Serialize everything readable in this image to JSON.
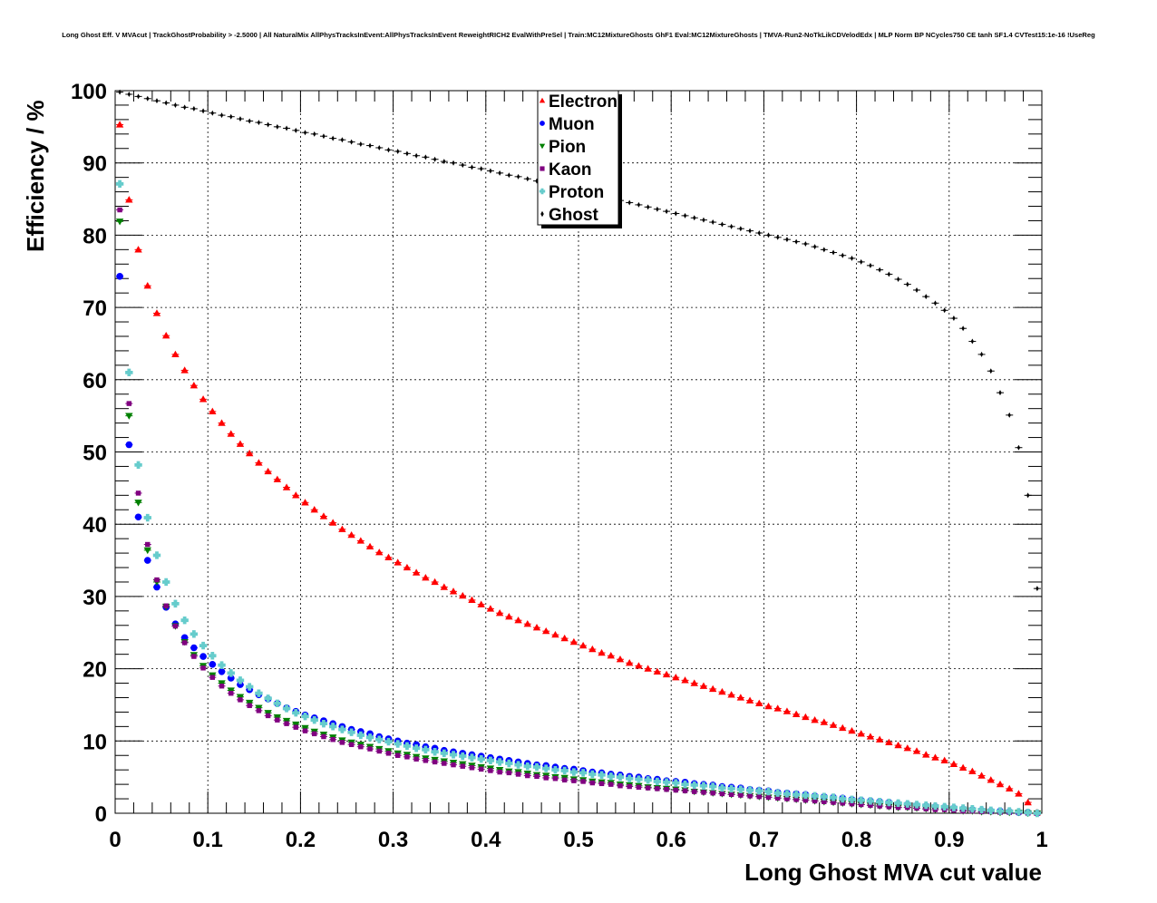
{
  "title": "Long Ghost Eff. V MVAcut | TrackGhostProbability > -2.5000 | All NaturalMix AllPhysTracksInEvent:AllPhysTracksInEvent ReweightRICH2 EvalWithPreSel | Train:MC12MixtureGhosts GhF1 Eval:MC12MixtureGhosts | TMVA-Run2-NoTkLikCDVelodEdx | MLP Norm BP NCycles750 CE tanh SF1.4 CVTest15:1e-16 !UseReg",
  "chart_data": {
    "type": "scatter",
    "title": "Long Ghost Eff. V MVAcut | TrackGhostProbability > -2.5000 | All NaturalMix AllPhysTracksInEvent:AllPhysTracksInEvent ReweightRICH2 EvalWithPreSel | Train:MC12MixtureGhosts GhF1 Eval:MC12MixtureGhosts | TMVA-Run2-NoTkLikCDVelodEdx | MLP Norm BP NCycles750 CE tanh SF1.4 CVTest15:1e-16 !UseReg",
    "xlabel": "Long Ghost MVA cut value",
    "ylabel": "Efficiency / %",
    "xlim": [
      0,
      1
    ],
    "ylim": [
      0,
      100
    ],
    "xticks": [
      "0",
      "0.1",
      "0.2",
      "0.3",
      "0.4",
      "0.5",
      "0.6",
      "0.7",
      "0.8",
      "0.9",
      "1"
    ],
    "yticks": [
      "0",
      "10",
      "20",
      "30",
      "40",
      "50",
      "60",
      "70",
      "80",
      "90",
      "100"
    ],
    "grid": true,
    "legend_position": "top-center",
    "x": [
      0.005,
      0.015,
      0.025,
      0.035,
      0.045,
      0.055,
      0.065,
      0.075,
      0.085,
      0.095,
      0.105,
      0.115,
      0.125,
      0.135,
      0.145,
      0.155,
      0.165,
      0.175,
      0.185,
      0.195,
      0.205,
      0.215,
      0.225,
      0.235,
      0.245,
      0.255,
      0.265,
      0.275,
      0.285,
      0.295,
      0.305,
      0.315,
      0.325,
      0.335,
      0.345,
      0.355,
      0.365,
      0.375,
      0.385,
      0.395,
      0.405,
      0.415,
      0.425,
      0.435,
      0.445,
      0.455,
      0.465,
      0.475,
      0.485,
      0.495,
      0.505,
      0.515,
      0.525,
      0.535,
      0.545,
      0.555,
      0.565,
      0.575,
      0.585,
      0.595,
      0.605,
      0.615,
      0.625,
      0.635,
      0.645,
      0.655,
      0.665,
      0.675,
      0.685,
      0.695,
      0.705,
      0.715,
      0.725,
      0.735,
      0.745,
      0.755,
      0.765,
      0.775,
      0.785,
      0.795,
      0.805,
      0.815,
      0.825,
      0.835,
      0.845,
      0.855,
      0.865,
      0.875,
      0.885,
      0.895,
      0.905,
      0.915,
      0.925,
      0.935,
      0.945,
      0.955,
      0.965,
      0.975,
      0.985,
      0.995
    ],
    "series": [
      {
        "name": "Electron",
        "color": "#ff0000",
        "marker": "triangle-up",
        "values": [
          95.3,
          84.9,
          78.0,
          73.0,
          69.2,
          66.1,
          63.5,
          61.3,
          59.2,
          57.3,
          55.6,
          54.0,
          52.5,
          51.1,
          49.8,
          48.5,
          47.3,
          46.2,
          45.1,
          44.0,
          43.0,
          42.0,
          41.1,
          40.2,
          39.3,
          38.5,
          37.7,
          36.9,
          36.1,
          35.4,
          34.7,
          34.0,
          33.3,
          32.6,
          32.0,
          31.3,
          30.7,
          30.1,
          29.5,
          28.9,
          28.3,
          27.7,
          27.2,
          26.7,
          26.2,
          25.7,
          25.2,
          24.7,
          24.2,
          23.7,
          23.2,
          22.7,
          22.2,
          21.8,
          21.3,
          20.8,
          20.4,
          20.0,
          19.6,
          19.2,
          18.8,
          18.4,
          18.0,
          17.6,
          17.2,
          16.8,
          16.4,
          16.0,
          15.6,
          15.2,
          14.8,
          14.5,
          14.1,
          13.7,
          13.3,
          12.9,
          12.6,
          12.2,
          11.8,
          11.4,
          11.0,
          10.6,
          10.2,
          9.8,
          9.4,
          9.0,
          8.6,
          8.1,
          7.7,
          7.3,
          6.8,
          6.3,
          5.8,
          5.2,
          4.6,
          4.0,
          3.4,
          2.7,
          1.5,
          0.1
        ]
      },
      {
        "name": "Muon",
        "color": "#0000ff",
        "marker": "circle",
        "values": [
          74.3,
          51.0,
          41.0,
          35.0,
          31.3,
          28.5,
          26.2,
          24.3,
          22.9,
          21.7,
          20.6,
          19.6,
          18.7,
          17.8,
          17.1,
          16.4,
          15.8,
          15.2,
          14.6,
          14.1,
          13.6,
          13.2,
          12.8,
          12.4,
          12.0,
          11.6,
          11.3,
          11.0,
          10.6,
          10.3,
          10.0,
          9.7,
          9.5,
          9.2,
          9.0,
          8.7,
          8.5,
          8.3,
          8.1,
          7.9,
          7.7,
          7.5,
          7.3,
          7.1,
          6.9,
          6.7,
          6.6,
          6.4,
          6.2,
          6.1,
          5.9,
          5.7,
          5.6,
          5.4,
          5.3,
          5.1,
          5.0,
          4.8,
          4.7,
          4.5,
          4.4,
          4.3,
          4.1,
          4.0,
          3.9,
          3.7,
          3.6,
          3.5,
          3.3,
          3.2,
          3.1,
          2.9,
          2.8,
          2.7,
          2.6,
          2.4,
          2.3,
          2.2,
          2.1,
          1.9,
          1.8,
          1.7,
          1.6,
          1.5,
          1.3,
          1.2,
          1.1,
          1.0,
          0.9,
          0.8,
          0.7,
          0.6,
          0.5,
          0.4,
          0.3,
          0.3,
          0.2,
          0.1,
          0.1,
          0.0
        ]
      },
      {
        "name": "Pion",
        "color": "#008000",
        "marker": "triangle-down",
        "values": [
          81.9,
          55.0,
          43.0,
          36.4,
          32.0,
          28.6,
          25.9,
          23.7,
          21.9,
          20.4,
          19.1,
          18.0,
          17.0,
          16.1,
          15.3,
          14.6,
          13.9,
          13.3,
          12.8,
          12.3,
          11.8,
          11.3,
          10.9,
          10.5,
          10.1,
          9.8,
          9.5,
          9.2,
          8.9,
          8.6,
          8.3,
          8.1,
          7.8,
          7.6,
          7.4,
          7.2,
          7.0,
          6.8,
          6.6,
          6.4,
          6.2,
          6.0,
          5.8,
          5.7,
          5.5,
          5.3,
          5.2,
          5.0,
          4.9,
          4.7,
          4.6,
          4.4,
          4.3,
          4.2,
          4.0,
          3.9,
          3.8,
          3.6,
          3.5,
          3.4,
          3.3,
          3.2,
          3.0,
          2.9,
          2.8,
          2.7,
          2.6,
          2.5,
          2.4,
          2.3,
          2.2,
          2.1,
          2.0,
          1.9,
          1.8,
          1.7,
          1.6,
          1.5,
          1.4,
          1.3,
          1.2,
          1.1,
          1.0,
          0.9,
          0.8,
          0.8,
          0.7,
          0.6,
          0.5,
          0.5,
          0.4,
          0.3,
          0.3,
          0.2,
          0.2,
          0.1,
          0.1,
          0.1,
          0.0,
          0.0
        ]
      },
      {
        "name": "Kaon",
        "color": "#800080",
        "marker": "square",
        "values": [
          83.5,
          56.7,
          44.3,
          37.2,
          32.3,
          28.7,
          25.9,
          23.6,
          21.7,
          20.1,
          18.8,
          17.6,
          16.6,
          15.7,
          14.9,
          14.2,
          13.5,
          12.9,
          12.4,
          11.9,
          11.4,
          11.0,
          10.6,
          10.2,
          9.8,
          9.5,
          9.2,
          8.9,
          8.6,
          8.3,
          8.0,
          7.8,
          7.5,
          7.3,
          7.1,
          6.9,
          6.7,
          6.5,
          6.3,
          6.1,
          5.9,
          5.7,
          5.6,
          5.4,
          5.2,
          5.1,
          4.9,
          4.8,
          4.6,
          4.5,
          4.4,
          4.2,
          4.1,
          4.0,
          3.8,
          3.7,
          3.6,
          3.5,
          3.4,
          3.3,
          3.2,
          3.1,
          3.0,
          2.9,
          2.8,
          2.7,
          2.6,
          2.5,
          2.4,
          2.3,
          2.2,
          2.1,
          2.0,
          1.9,
          1.8,
          1.7,
          1.6,
          1.5,
          1.4,
          1.3,
          1.2,
          1.1,
          1.0,
          0.9,
          0.8,
          0.8,
          0.7,
          0.6,
          0.5,
          0.5,
          0.4,
          0.3,
          0.3,
          0.2,
          0.2,
          0.1,
          0.1,
          0.1,
          0.0,
          0.0
        ]
      },
      {
        "name": "Proton",
        "color": "#66cccc",
        "marker": "cross",
        "values": [
          87.1,
          61.0,
          48.2,
          40.9,
          35.7,
          32.0,
          29.0,
          26.7,
          24.8,
          23.2,
          21.8,
          20.5,
          19.4,
          18.4,
          17.5,
          16.6,
          15.9,
          15.2,
          14.5,
          13.9,
          13.4,
          12.9,
          12.4,
          12.0,
          11.6,
          11.2,
          10.8,
          10.5,
          10.2,
          9.9,
          9.6,
          9.3,
          9.0,
          8.8,
          8.5,
          8.3,
          8.1,
          7.9,
          7.7,
          7.5,
          7.3,
          7.1,
          6.9,
          6.7,
          6.5,
          6.4,
          6.2,
          6.0,
          5.9,
          5.7,
          5.6,
          5.4,
          5.3,
          5.1,
          5.0,
          4.8,
          4.7,
          4.6,
          4.4,
          4.3,
          4.2,
          4.0,
          3.9,
          3.8,
          3.7,
          3.5,
          3.4,
          3.3,
          3.2,
          3.1,
          3.0,
          2.8,
          2.7,
          2.6,
          2.5,
          2.4,
          2.3,
          2.2,
          2.0,
          1.9,
          1.8,
          1.7,
          1.6,
          1.5,
          1.4,
          1.3,
          1.2,
          1.1,
          1.0,
          0.9,
          0.8,
          0.7,
          0.6,
          0.5,
          0.4,
          0.3,
          0.3,
          0.2,
          0.1,
          0.0
        ]
      },
      {
        "name": "Ghost",
        "color": "#000000",
        "marker": "diamond",
        "values": [
          99.8,
          99.5,
          99.2,
          98.9,
          98.6,
          98.3,
          98.0,
          97.7,
          97.5,
          97.2,
          96.9,
          96.6,
          96.4,
          96.1,
          95.8,
          95.6,
          95.3,
          95.0,
          94.8,
          94.5,
          94.2,
          94.0,
          93.7,
          93.4,
          93.2,
          92.9,
          92.6,
          92.4,
          92.1,
          91.8,
          91.6,
          91.3,
          91.0,
          90.8,
          90.5,
          90.2,
          90.0,
          89.7,
          89.4,
          89.2,
          88.9,
          88.6,
          88.3,
          88.1,
          87.8,
          87.5,
          87.2,
          86.9,
          86.6,
          86.3,
          86.0,
          85.7,
          85.4,
          85.1,
          84.8,
          84.5,
          84.2,
          83.9,
          83.6,
          83.3,
          83.0,
          82.7,
          82.4,
          82.1,
          81.8,
          81.5,
          81.2,
          80.9,
          80.6,
          80.3,
          80.0,
          79.7,
          79.4,
          79.1,
          78.8,
          78.4,
          78.0,
          77.6,
          77.2,
          76.8,
          76.3,
          75.8,
          75.2,
          74.6,
          73.9,
          73.2,
          72.4,
          71.5,
          70.6,
          69.6,
          68.5,
          67.1,
          65.3,
          63.5,
          61.2,
          58.2,
          55.1,
          50.6,
          44.0,
          31.1
        ]
      }
    ]
  }
}
